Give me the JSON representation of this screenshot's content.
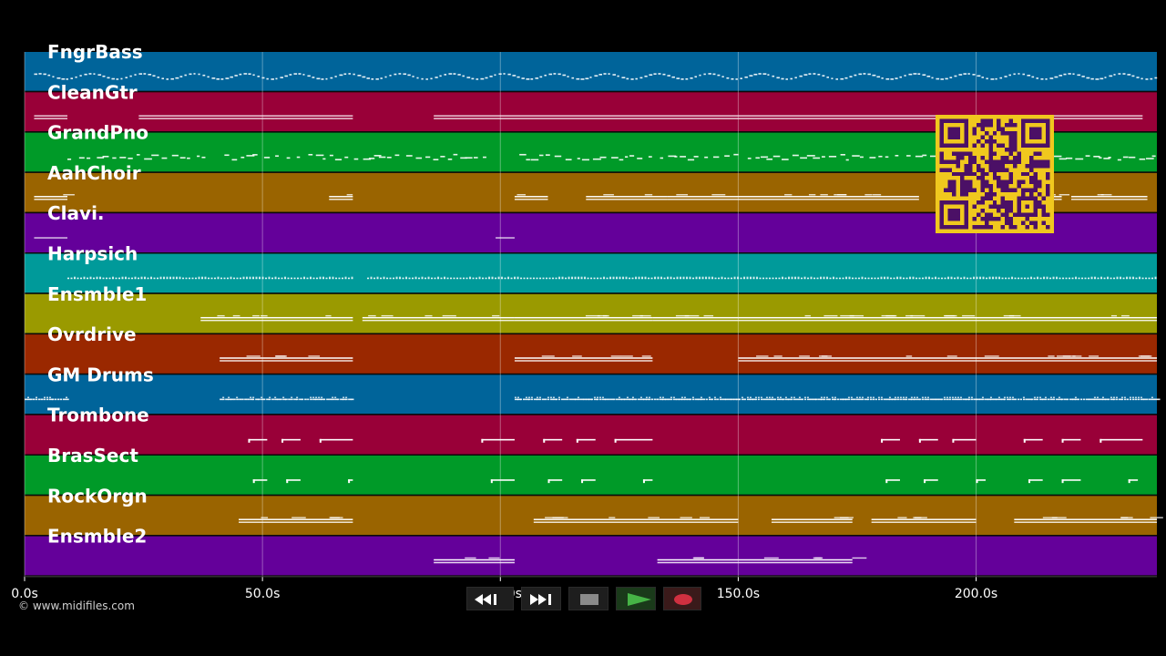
{
  "copyright": "© www.midifiles.com",
  "timeline": {
    "unit": "s",
    "max_seconds": 238,
    "ticks": [
      {
        "seconds": 0,
        "label": "0.0s"
      },
      {
        "seconds": 50,
        "label": "50.0s"
      },
      {
        "seconds": 100,
        "label": "100.0s"
      },
      {
        "seconds": 150,
        "label": "150.0s"
      },
      {
        "seconds": 200,
        "label": "200.0s"
      }
    ]
  },
  "tracks": [
    {
      "name": "FngrBass",
      "color": "#00649a",
      "style": "bass",
      "segments": [
        [
          2,
          238
        ]
      ]
    },
    {
      "name": "CleanGtr",
      "color": "#990038",
      "style": "stack",
      "segments": [
        [
          2,
          9
        ],
        [
          24,
          69
        ],
        [
          86,
          150
        ],
        [
          150,
          235
        ]
      ]
    },
    {
      "name": "GrandPno",
      "color": "#009a28",
      "style": "dashes",
      "segments": [
        [
          9,
          38
        ],
        [
          42,
          98
        ],
        [
          104,
          150
        ],
        [
          152,
          238
        ]
      ]
    },
    {
      "name": "AahChoir",
      "color": "#9a6400",
      "style": "chords",
      "segments": [
        [
          2,
          9
        ],
        [
          64,
          69
        ],
        [
          103,
          110
        ],
        [
          118,
          135
        ],
        [
          135,
          188
        ],
        [
          192,
          200
        ],
        [
          205,
          218
        ],
        [
          220,
          236
        ]
      ]
    },
    {
      "name": "Clavi.",
      "color": "#64009a",
      "style": "sparse",
      "segments": [
        [
          2,
          9
        ],
        [
          99,
          103
        ]
      ]
    },
    {
      "name": "Harpsich",
      "color": "#009a9a",
      "style": "dotted",
      "segments": [
        [
          9,
          69
        ],
        [
          72,
          238
        ]
      ]
    },
    {
      "name": "Ensmble1",
      "color": "#9a9a00",
      "style": "chords",
      "segments": [
        [
          37,
          69
        ],
        [
          71,
          103
        ],
        [
          103,
          132
        ],
        [
          132,
          150
        ],
        [
          150,
          238
        ]
      ]
    },
    {
      "name": "Ovrdrive",
      "color": "#9a2800",
      "style": "chords",
      "segments": [
        [
          41,
          69
        ],
        [
          103,
          132
        ],
        [
          150,
          238
        ]
      ]
    },
    {
      "name": "GM Drums",
      "color": "#00649a",
      "style": "drums",
      "segments": [
        [
          0,
          9
        ],
        [
          41,
          69
        ],
        [
          103,
          238
        ]
      ]
    },
    {
      "name": "Trombone",
      "color": "#990038",
      "style": "phrases",
      "segments": [
        [
          47,
          51
        ],
        [
          54,
          58
        ],
        [
          62,
          69
        ],
        [
          96,
          103
        ],
        [
          109,
          113
        ],
        [
          116,
          120
        ],
        [
          124,
          132
        ],
        [
          180,
          184
        ],
        [
          188,
          192
        ],
        [
          195,
          200
        ],
        [
          210,
          214
        ],
        [
          218,
          222
        ],
        [
          226,
          235
        ]
      ]
    },
    {
      "name": "BrasSect",
      "color": "#009a28",
      "style": "phrases",
      "segments": [
        [
          48,
          51
        ],
        [
          55,
          58
        ],
        [
          68,
          69
        ],
        [
          98,
          103
        ],
        [
          110,
          113
        ],
        [
          117,
          120
        ],
        [
          130,
          132
        ],
        [
          181,
          184
        ],
        [
          189,
          192
        ],
        [
          200,
          202
        ],
        [
          211,
          214
        ],
        [
          218,
          222
        ],
        [
          232,
          234
        ]
      ]
    },
    {
      "name": "RockOrgn",
      "color": "#9a6400",
      "style": "chords",
      "segments": [
        [
          45,
          69
        ],
        [
          107,
          150
        ],
        [
          157,
          174
        ],
        [
          178,
          200
        ],
        [
          208,
          238
        ]
      ]
    },
    {
      "name": "Ensmble2",
      "color": "#64009a",
      "style": "chords",
      "segments": [
        [
          86,
          103
        ],
        [
          133,
          150
        ],
        [
          150,
          174
        ]
      ]
    }
  ],
  "transport": {
    "buttons": [
      {
        "name": "rewind-button",
        "icon": "rewind-icon",
        "label": "Rewind",
        "fill": "#ffffff"
      },
      {
        "name": "fast-forward-button",
        "icon": "fast-forward-icon",
        "label": "Fast forward",
        "fill": "#ffffff"
      },
      {
        "name": "stop-button",
        "icon": "stop-icon",
        "label": "Stop",
        "fill": "#8a8a8a"
      },
      {
        "name": "play-button",
        "icon": "play-icon",
        "label": "Play",
        "fill": "#46b446"
      },
      {
        "name": "record-button",
        "icon": "record-icon",
        "label": "Record",
        "fill": "#d03040"
      }
    ]
  },
  "qr": {
    "name": "qr-code",
    "fg": "#4b1066",
    "bg": "#f0c81e"
  },
  "colors": {
    "background": "#000000",
    "grid": "#ffffff",
    "notes": "#ffffff"
  }
}
